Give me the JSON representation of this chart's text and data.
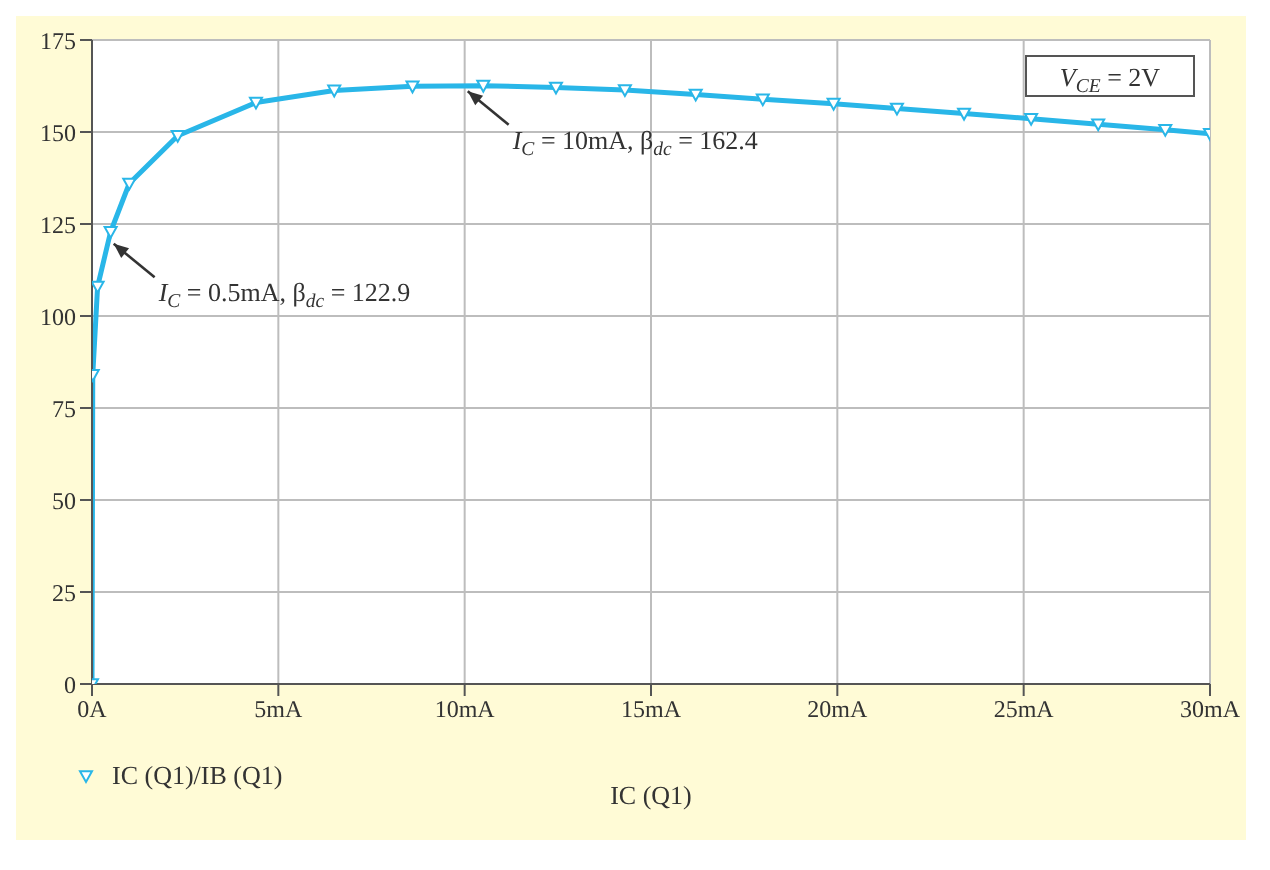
{
  "chart_data": {
    "type": "line",
    "xlabel": "IC (Q1)",
    "x": [
      0,
      0.02,
      0.15,
      0.5,
      1,
      2.3,
      4.4,
      6.5,
      8.6,
      10.5,
      12.45,
      14.3,
      16.2,
      18,
      19.9,
      21.6,
      23.4,
      25.2,
      27,
      28.8,
      30
    ],
    "series": [
      {
        "name": "IC (Q1)/IB (Q1)",
        "color": "#29b6e8",
        "values": [
          0,
          84,
          108,
          122.9,
          136,
          149,
          158,
          161.3,
          162.4,
          162.6,
          162.1,
          161.4,
          160.2,
          158.9,
          157.7,
          156.4,
          155,
          153.6,
          152.1,
          150.6,
          149.5
        ]
      }
    ],
    "xlim": [
      0,
      30
    ],
    "xticks": [
      {
        "value": 0,
        "label": "0A"
      },
      {
        "value": 5,
        "label": "5mA"
      },
      {
        "value": 10,
        "label": "10mA"
      },
      {
        "value": 15,
        "label": "15mA"
      },
      {
        "value": 20,
        "label": "20mA"
      },
      {
        "value": 25,
        "label": "25mA"
      },
      {
        "value": 30,
        "label": "30mA"
      }
    ],
    "ylim": [
      0,
      175
    ],
    "yticks": [
      0,
      25,
      50,
      75,
      100,
      125,
      150,
      175
    ],
    "grid": true,
    "legend": "bottom left",
    "marker": "triangle",
    "line_style": "solid",
    "annotations": [
      {
        "text": "I$_{C}$ = 0.5mA, β$_{dc}$ = 122.9",
        "x": 0.5,
        "y": 122.9
      },
      {
        "text": "I$_{C}$ = 10mA, β$_{dc}$ = 162.4",
        "x": 10,
        "y": 162.4
      },
      "V$_{CE}$ = 2V"
    ]
  }
}
